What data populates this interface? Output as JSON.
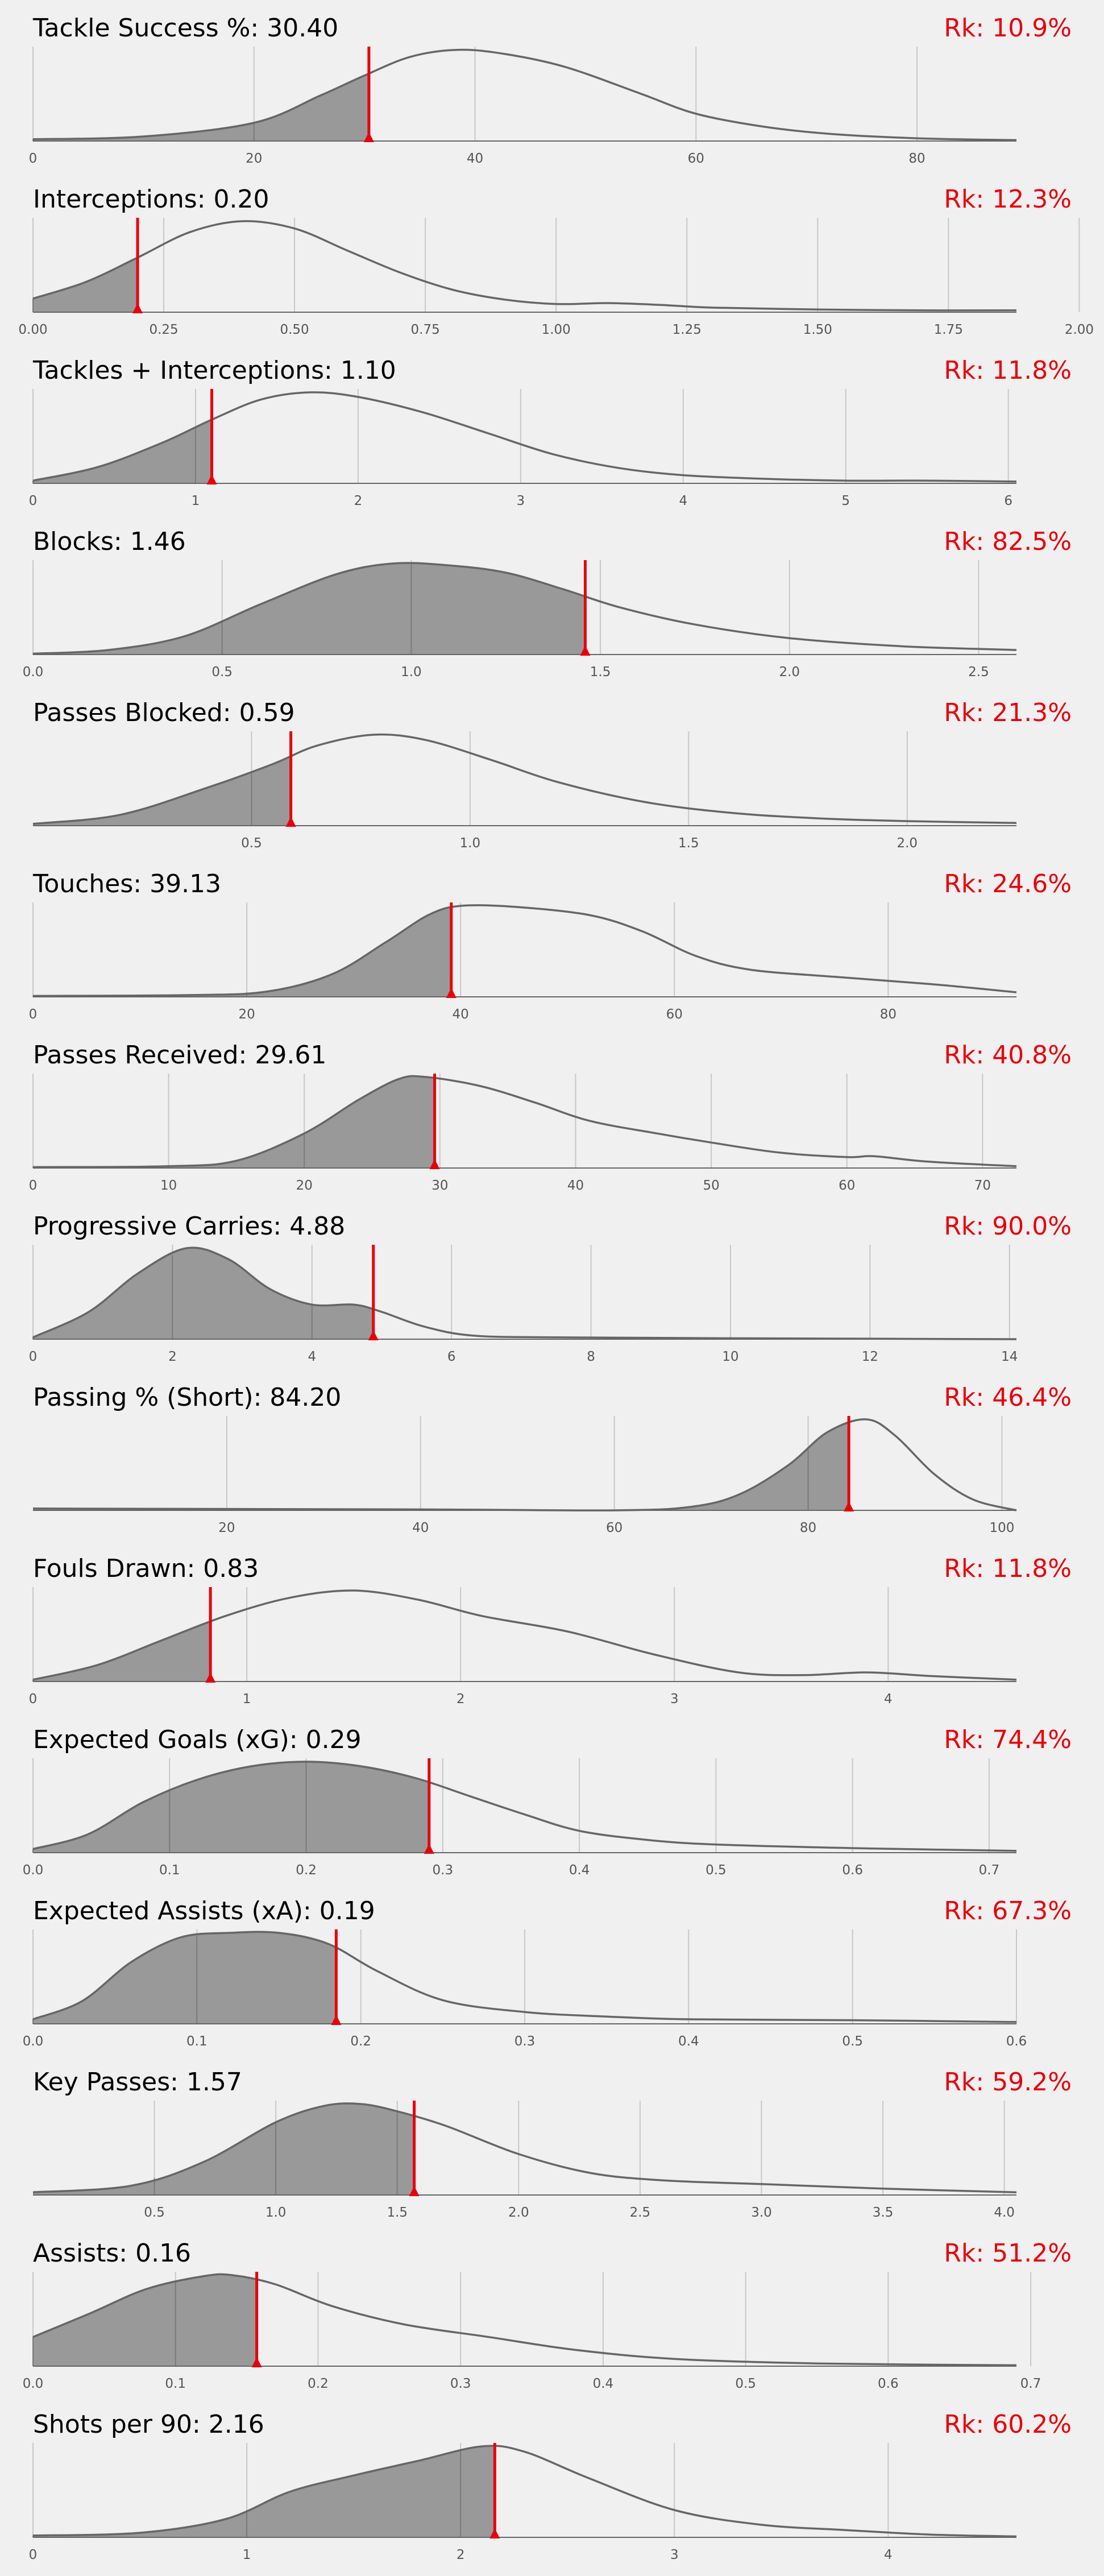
{
  "colors": {
    "background": "#f0f0f0",
    "fill": "#999999",
    "curve": "#666666",
    "marker": "#e8000b",
    "text": "#000000",
    "rank": "#e8000b",
    "tick": "#555555"
  },
  "chart_data": [
    {
      "type": "area",
      "metric": "Tackle Success %",
      "value_label": "30.40",
      "value": 30.4,
      "rank_label": "Rk: 10.9%",
      "xlim": [
        0,
        89
      ],
      "ticks": [
        0,
        20,
        40,
        60,
        80
      ],
      "tick_labels": [
        "0",
        "20",
        "40",
        "60",
        "80"
      ],
      "grid_extra": [],
      "density": [
        [
          0,
          0.02
        ],
        [
          10,
          0.05
        ],
        [
          20,
          0.2
        ],
        [
          26,
          0.5
        ],
        [
          30,
          0.72
        ],
        [
          34,
          0.92
        ],
        [
          38,
          1.0
        ],
        [
          42,
          0.97
        ],
        [
          48,
          0.82
        ],
        [
          55,
          0.52
        ],
        [
          60,
          0.3
        ],
        [
          66,
          0.16
        ],
        [
          72,
          0.08
        ],
        [
          80,
          0.03
        ],
        [
          89,
          0.01
        ]
      ]
    },
    {
      "type": "area",
      "metric": "Interceptions",
      "value_label": "0.20",
      "value": 0.2,
      "rank_label": "Rk: 12.3%",
      "xlim": [
        0,
        1.88
      ],
      "ticks": [
        0,
        0.25,
        0.5,
        0.75,
        1.0,
        1.25,
        1.5,
        1.75,
        2.0
      ],
      "tick_labels": [
        "0.00",
        "0.25",
        "0.50",
        "0.75",
        "1.00",
        "1.25",
        "1.50",
        "1.75",
        "2.00"
      ],
      "grid_extra": [],
      "density": [
        [
          0,
          0.15
        ],
        [
          0.1,
          0.33
        ],
        [
          0.2,
          0.6
        ],
        [
          0.3,
          0.88
        ],
        [
          0.4,
          1.0
        ],
        [
          0.5,
          0.92
        ],
        [
          0.6,
          0.68
        ],
        [
          0.7,
          0.44
        ],
        [
          0.8,
          0.25
        ],
        [
          0.9,
          0.14
        ],
        [
          1.0,
          0.09
        ],
        [
          1.1,
          0.1
        ],
        [
          1.2,
          0.08
        ],
        [
          1.3,
          0.05
        ],
        [
          1.5,
          0.03
        ],
        [
          1.7,
          0.02
        ],
        [
          1.88,
          0.02
        ]
      ]
    },
    {
      "type": "area",
      "metric": "Tackles + Interceptions",
      "value_label": "1.10",
      "value": 1.1,
      "rank_label": "Rk: 11.8%",
      "xlim": [
        0,
        6.05
      ],
      "ticks": [
        0,
        1,
        2,
        3,
        4,
        5,
        6
      ],
      "tick_labels": [
        "0",
        "1",
        "2",
        "3",
        "4",
        "5",
        "6"
      ],
      "grid_extra": [],
      "density": [
        [
          0,
          0.03
        ],
        [
          0.4,
          0.18
        ],
        [
          0.8,
          0.45
        ],
        [
          1.1,
          0.7
        ],
        [
          1.4,
          0.92
        ],
        [
          1.7,
          1.0
        ],
        [
          2.0,
          0.95
        ],
        [
          2.4,
          0.78
        ],
        [
          2.8,
          0.55
        ],
        [
          3.2,
          0.32
        ],
        [
          3.6,
          0.17
        ],
        [
          4.0,
          0.09
        ],
        [
          4.5,
          0.05
        ],
        [
          5.0,
          0.03
        ],
        [
          5.5,
          0.03
        ],
        [
          6.05,
          0.02
        ]
      ]
    },
    {
      "type": "area",
      "metric": "Blocks",
      "value_label": "1.46",
      "value": 1.46,
      "rank_label": "Rk: 82.5%",
      "xlim": [
        0,
        2.6
      ],
      "ticks": [
        0,
        0.5,
        1.0,
        1.5,
        2.0,
        2.5
      ],
      "tick_labels": [
        "0.0",
        "0.5",
        "1.0",
        "1.5",
        "2.0",
        "2.5"
      ],
      "grid_extra": [],
      "density": [
        [
          0,
          0.01
        ],
        [
          0.2,
          0.05
        ],
        [
          0.4,
          0.2
        ],
        [
          0.6,
          0.55
        ],
        [
          0.8,
          0.88
        ],
        [
          0.95,
          1.0
        ],
        [
          1.1,
          0.98
        ],
        [
          1.25,
          0.9
        ],
        [
          1.4,
          0.72
        ],
        [
          1.55,
          0.52
        ],
        [
          1.75,
          0.33
        ],
        [
          2.0,
          0.18
        ],
        [
          2.3,
          0.09
        ],
        [
          2.6,
          0.05
        ]
      ]
    },
    {
      "type": "area",
      "metric": "Passes Blocked",
      "value_label": "0.59",
      "value": 0.59,
      "rank_label": "Rk: 21.3%",
      "xlim": [
        0,
        2.25
      ],
      "ticks": [
        0.5,
        1.0,
        1.5,
        2.0
      ],
      "tick_labels": [
        "0.5",
        "1.0",
        "1.5",
        "2.0"
      ],
      "grid_extra": [],
      "density": [
        [
          0,
          0.02
        ],
        [
          0.2,
          0.12
        ],
        [
          0.4,
          0.42
        ],
        [
          0.55,
          0.68
        ],
        [
          0.65,
          0.88
        ],
        [
          0.78,
          1.0
        ],
        [
          0.9,
          0.94
        ],
        [
          1.05,
          0.72
        ],
        [
          1.2,
          0.48
        ],
        [
          1.4,
          0.26
        ],
        [
          1.6,
          0.14
        ],
        [
          1.8,
          0.08
        ],
        [
          2.0,
          0.05
        ],
        [
          2.25,
          0.03
        ]
      ]
    },
    {
      "type": "area",
      "metric": "Touches",
      "value_label": "39.13",
      "value": 39.13,
      "rank_label": "Rk: 24.6%",
      "xlim": [
        0,
        92
      ],
      "ticks": [
        0,
        20,
        40,
        60,
        80
      ],
      "tick_labels": [
        "0",
        "20",
        "40",
        "60",
        "80"
      ],
      "grid_extra": [],
      "density": [
        [
          0,
          0.01
        ],
        [
          15,
          0.02
        ],
        [
          22,
          0.06
        ],
        [
          28,
          0.25
        ],
        [
          33,
          0.6
        ],
        [
          37,
          0.9
        ],
        [
          40,
          1.0
        ],
        [
          45,
          0.99
        ],
        [
          52,
          0.9
        ],
        [
          57,
          0.72
        ],
        [
          62,
          0.45
        ],
        [
          67,
          0.3
        ],
        [
          75,
          0.22
        ],
        [
          84,
          0.14
        ],
        [
          92,
          0.05
        ]
      ]
    },
    {
      "type": "area",
      "metric": "Passes Received",
      "value_label": "29.61",
      "value": 29.61,
      "rank_label": "Rk: 40.8%",
      "xlim": [
        0,
        72.5
      ],
      "ticks": [
        0,
        10,
        20,
        30,
        40,
        50,
        60,
        70
      ],
      "tick_labels": [
        "0",
        "10",
        "20",
        "30",
        "40",
        "50",
        "60",
        "70"
      ],
      "grid_extra": [],
      "density": [
        [
          0,
          0.01
        ],
        [
          10,
          0.02
        ],
        [
          15,
          0.08
        ],
        [
          20,
          0.38
        ],
        [
          24,
          0.75
        ],
        [
          27,
          0.98
        ],
        [
          29,
          1.0
        ],
        [
          33,
          0.9
        ],
        [
          37,
          0.72
        ],
        [
          41,
          0.52
        ],
        [
          46,
          0.38
        ],
        [
          50,
          0.28
        ],
        [
          55,
          0.17
        ],
        [
          60,
          0.12
        ],
        [
          62,
          0.13
        ],
        [
          66,
          0.07
        ],
        [
          72.5,
          0.02
        ]
      ]
    },
    {
      "type": "area",
      "metric": "Progressive Carries",
      "value_label": "4.88",
      "value": 4.88,
      "rank_label": "Rk: 90.0%",
      "xlim": [
        0,
        14.1
      ],
      "ticks": [
        0,
        2,
        4,
        6,
        8,
        10,
        12,
        14
      ],
      "tick_labels": [
        "0",
        "2",
        "4",
        "6",
        "8",
        "10",
        "12",
        "14"
      ],
      "grid_extra": [],
      "density": [
        [
          0,
          0.02
        ],
        [
          0.8,
          0.3
        ],
        [
          1.5,
          0.72
        ],
        [
          2.2,
          1.0
        ],
        [
          2.8,
          0.88
        ],
        [
          3.4,
          0.55
        ],
        [
          4.0,
          0.38
        ],
        [
          4.6,
          0.38
        ],
        [
          5.0,
          0.3
        ],
        [
          5.6,
          0.14
        ],
        [
          6.3,
          0.04
        ],
        [
          7.5,
          0.02
        ],
        [
          10,
          0.01
        ],
        [
          14.1,
          0.0
        ]
      ]
    },
    {
      "type": "area",
      "metric": "Passing % (Short)",
      "value_label": "84.20",
      "value": 84.2,
      "rank_label": "Rk: 46.4%",
      "xlim": [
        0,
        101.5
      ],
      "ticks": [
        20,
        40,
        60,
        80,
        100
      ],
      "tick_labels": [
        "20",
        "40",
        "60",
        "80",
        "100"
      ],
      "grid_extra": [],
      "density": [
        [
          0,
          0.02
        ],
        [
          40,
          0.01
        ],
        [
          60,
          0.0
        ],
        [
          68,
          0.04
        ],
        [
          73,
          0.18
        ],
        [
          78,
          0.5
        ],
        [
          82,
          0.86
        ],
        [
          86,
          1.0
        ],
        [
          89,
          0.82
        ],
        [
          93,
          0.4
        ],
        [
          97,
          0.12
        ],
        [
          101.5,
          0.0
        ]
      ]
    },
    {
      "type": "area",
      "metric": "Fouls Drawn",
      "value_label": "0.83",
      "value": 0.83,
      "rank_label": "Rk: 11.8%",
      "xlim": [
        0,
        4.6
      ],
      "ticks": [
        0,
        1,
        2,
        3,
        4
      ],
      "tick_labels": [
        "0",
        "1",
        "2",
        "3",
        "4"
      ],
      "grid_extra": [],
      "density": [
        [
          0,
          0.02
        ],
        [
          0.3,
          0.18
        ],
        [
          0.6,
          0.45
        ],
        [
          0.9,
          0.72
        ],
        [
          1.2,
          0.92
        ],
        [
          1.5,
          1.0
        ],
        [
          1.8,
          0.9
        ],
        [
          2.1,
          0.72
        ],
        [
          2.5,
          0.55
        ],
        [
          2.9,
          0.3
        ],
        [
          3.3,
          0.1
        ],
        [
          3.6,
          0.07
        ],
        [
          3.9,
          0.1
        ],
        [
          4.2,
          0.06
        ],
        [
          4.6,
          0.02
        ]
      ]
    },
    {
      "type": "area",
      "metric": "Expected Goals (xG)",
      "value_label": "0.29",
      "value": 0.29,
      "rank_label": "Rk: 74.4%",
      "xlim": [
        0,
        0.72
      ],
      "ticks": [
        0.0,
        0.1,
        0.2,
        0.3,
        0.4,
        0.5,
        0.6,
        0.7
      ],
      "tick_labels": [
        "0.0",
        "0.1",
        "0.2",
        "0.3",
        "0.4",
        "0.5",
        "0.6",
        "0.7"
      ],
      "grid_extra": [],
      "density": [
        [
          0,
          0.04
        ],
        [
          0.04,
          0.2
        ],
        [
          0.08,
          0.55
        ],
        [
          0.12,
          0.8
        ],
        [
          0.16,
          0.95
        ],
        [
          0.2,
          1.0
        ],
        [
          0.24,
          0.95
        ],
        [
          0.28,
          0.82
        ],
        [
          0.32,
          0.62
        ],
        [
          0.36,
          0.42
        ],
        [
          0.4,
          0.24
        ],
        [
          0.45,
          0.14
        ],
        [
          0.5,
          0.09
        ],
        [
          0.6,
          0.05
        ],
        [
          0.72,
          0.02
        ]
      ]
    },
    {
      "type": "area",
      "metric": "Expected Assists (xA)",
      "value_label": "0.19",
      "value": 0.185,
      "rank_label": "Rk: 67.3%",
      "xlim": [
        0,
        0.6
      ],
      "ticks": [
        0.0,
        0.1,
        0.2,
        0.3,
        0.4,
        0.5,
        0.6
      ],
      "tick_labels": [
        "0.0",
        "0.1",
        "0.2",
        "0.3",
        "0.4",
        "0.5",
        "0.6"
      ],
      "grid_extra": [],
      "density": [
        [
          0,
          0.05
        ],
        [
          0.03,
          0.25
        ],
        [
          0.06,
          0.68
        ],
        [
          0.09,
          0.95
        ],
        [
          0.12,
          1.0
        ],
        [
          0.15,
          1.0
        ],
        [
          0.18,
          0.88
        ],
        [
          0.21,
          0.58
        ],
        [
          0.25,
          0.26
        ],
        [
          0.3,
          0.13
        ],
        [
          0.35,
          0.08
        ],
        [
          0.4,
          0.05
        ],
        [
          0.5,
          0.04
        ],
        [
          0.6,
          0.02
        ]
      ]
    },
    {
      "type": "area",
      "metric": "Key Passes",
      "value_label": "1.57",
      "value": 1.57,
      "rank_label": "Rk: 59.2%",
      "xlim": [
        0,
        4.05
      ],
      "ticks": [
        0.5,
        1.0,
        1.5,
        2.0,
        2.5,
        3.0,
        3.5,
        4.0
      ],
      "tick_labels": [
        "0.5",
        "1.0",
        "1.5",
        "2.0",
        "2.5",
        "3.0",
        "3.5",
        "4.0"
      ],
      "grid_extra": [],
      "density": [
        [
          0,
          0.03
        ],
        [
          0.4,
          0.1
        ],
        [
          0.7,
          0.36
        ],
        [
          1.0,
          0.8
        ],
        [
          1.2,
          0.98
        ],
        [
          1.35,
          1.0
        ],
        [
          1.5,
          0.92
        ],
        [
          1.7,
          0.76
        ],
        [
          2.0,
          0.45
        ],
        [
          2.3,
          0.24
        ],
        [
          2.6,
          0.16
        ],
        [
          3.0,
          0.12
        ],
        [
          3.5,
          0.07
        ],
        [
          4.05,
          0.03
        ]
      ]
    },
    {
      "type": "area",
      "metric": "Assists",
      "value_label": "0.16",
      "value": 0.157,
      "rank_label": "Rk: 51.2%",
      "xlim": [
        0,
        0.69
      ],
      "ticks": [
        0.0,
        0.1,
        0.2,
        0.3,
        0.4,
        0.5,
        0.6,
        0.7
      ],
      "tick_labels": [
        "0.0",
        "0.1",
        "0.2",
        "0.3",
        "0.4",
        "0.5",
        "0.6",
        "0.7"
      ],
      "grid_extra": [],
      "density": [
        [
          0,
          0.32
        ],
        [
          0.04,
          0.58
        ],
        [
          0.08,
          0.85
        ],
        [
          0.12,
          0.99
        ],
        [
          0.14,
          1.0
        ],
        [
          0.17,
          0.9
        ],
        [
          0.21,
          0.66
        ],
        [
          0.26,
          0.46
        ],
        [
          0.32,
          0.32
        ],
        [
          0.38,
          0.18
        ],
        [
          0.45,
          0.08
        ],
        [
          0.55,
          0.03
        ],
        [
          0.69,
          0.01
        ]
      ]
    },
    {
      "type": "area",
      "metric": "Shots per 90",
      "value_label": "2.16",
      "value": 2.16,
      "rank_label": "Rk: 60.2%",
      "xlim": [
        0,
        4.6
      ],
      "ticks": [
        0,
        1,
        2,
        3,
        4
      ],
      "tick_labels": [
        "0",
        "1",
        "2",
        "3",
        "4"
      ],
      "grid_extra": [],
      "density": [
        [
          0,
          0.02
        ],
        [
          0.5,
          0.05
        ],
        [
          0.9,
          0.2
        ],
        [
          1.2,
          0.5
        ],
        [
          1.5,
          0.68
        ],
        [
          1.8,
          0.84
        ],
        [
          2.1,
          1.0
        ],
        [
          2.3,
          0.94
        ],
        [
          2.6,
          0.65
        ],
        [
          3.0,
          0.3
        ],
        [
          3.4,
          0.14
        ],
        [
          3.8,
          0.08
        ],
        [
          4.2,
          0.03
        ],
        [
          4.6,
          0.01
        ]
      ]
    }
  ]
}
